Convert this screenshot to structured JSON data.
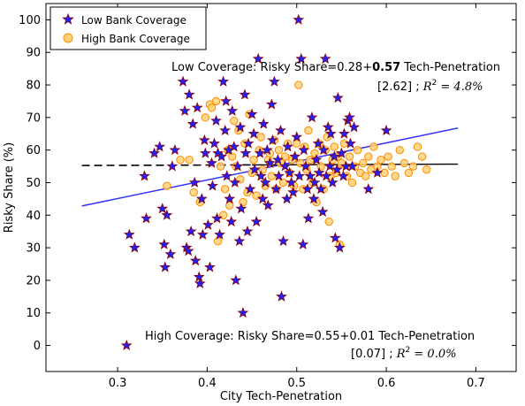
{
  "chart_data": {
    "type": "scatter",
    "xlabel": "City Tech-Penetration",
    "ylabel": "Risky Share (%)",
    "xlim": [
      0.22,
      0.745
    ],
    "ylim": [
      -8,
      105
    ],
    "xticks": [
      0.3,
      0.4,
      0.5,
      0.6,
      0.7
    ],
    "xtick_labels": [
      "0.3",
      "0.4",
      "0.5",
      "0.6",
      "0.7"
    ],
    "yticks": [
      0,
      10,
      20,
      30,
      40,
      50,
      60,
      70,
      80,
      90,
      100
    ],
    "ytick_labels": [
      "0",
      "10",
      "20",
      "30",
      "40",
      "50",
      "60",
      "70",
      "80",
      "90",
      "100"
    ],
    "legend": {
      "placement": "top-left"
    },
    "series": [
      {
        "name": "Low Bank Coverage",
        "marker": "star",
        "color": "#2020ff",
        "edge_color": "#8b0000",
        "points": [
          [
            0.31,
            0
          ],
          [
            0.313,
            34
          ],
          [
            0.319,
            30
          ],
          [
            0.33,
            52
          ],
          [
            0.332,
            39
          ],
          [
            0.341,
            59
          ],
          [
            0.347,
            61
          ],
          [
            0.35,
            42
          ],
          [
            0.352,
            31
          ],
          [
            0.353,
            24
          ],
          [
            0.355,
            40
          ],
          [
            0.359,
            28
          ],
          [
            0.361,
            55
          ],
          [
            0.364,
            60
          ],
          [
            0.37,
            92
          ],
          [
            0.373,
            81
          ],
          [
            0.375,
            72
          ],
          [
            0.377,
            30
          ],
          [
            0.379,
            29
          ],
          [
            0.38,
            77
          ],
          [
            0.382,
            35
          ],
          [
            0.384,
            68
          ],
          [
            0.386,
            50
          ],
          [
            0.387,
            26
          ],
          [
            0.389,
            73
          ],
          [
            0.391,
            21
          ],
          [
            0.392,
            19
          ],
          [
            0.394,
            45
          ],
          [
            0.395,
            34
          ],
          [
            0.397,
            63
          ],
          [
            0.398,
            59
          ],
          [
            0.401,
            37
          ],
          [
            0.403,
            24
          ],
          [
            0.405,
            56
          ],
          [
            0.406,
            49
          ],
          [
            0.408,
            62
          ],
          [
            0.41,
            69
          ],
          [
            0.411,
            39
          ],
          [
            0.412,
            59
          ],
          [
            0.414,
            34
          ],
          [
            0.416,
            58
          ],
          [
            0.418,
            81
          ],
          [
            0.42,
            66
          ],
          [
            0.421,
            75
          ],
          [
            0.422,
            52
          ],
          [
            0.424,
            60
          ],
          [
            0.425,
            45
          ],
          [
            0.427,
            38
          ],
          [
            0.428,
            72
          ],
          [
            0.43,
            61
          ],
          [
            0.431,
            50
          ],
          [
            0.432,
            20
          ],
          [
            0.434,
            55
          ],
          [
            0.436,
            32
          ],
          [
            0.437,
            67
          ],
          [
            0.438,
            42
          ],
          [
            0.44,
            10
          ],
          [
            0.442,
            77
          ],
          [
            0.443,
            59
          ],
          [
            0.445,
            35
          ],
          [
            0.446,
            62
          ],
          [
            0.448,
            48
          ],
          [
            0.45,
            71
          ],
          [
            0.452,
            65
          ],
          [
            0.453,
            54
          ],
          [
            0.455,
            38
          ],
          [
            0.457,
            88
          ],
          [
            0.459,
            59
          ],
          [
            0.46,
            52
          ],
          [
            0.462,
            45
          ],
          [
            0.463,
            68
          ],
          [
            0.465,
            50
          ],
          [
            0.467,
            60
          ],
          [
            0.468,
            43
          ],
          [
            0.47,
            56
          ],
          [
            0.472,
            74
          ],
          [
            0.473,
            63
          ],
          [
            0.475,
            81
          ],
          [
            0.477,
            48
          ],
          [
            0.479,
            57
          ],
          [
            0.48,
            52
          ],
          [
            0.482,
            66
          ],
          [
            0.483,
            15
          ],
          [
            0.485,
            32
          ],
          [
            0.487,
            55
          ],
          [
            0.489,
            45
          ],
          [
            0.49,
            61
          ],
          [
            0.492,
            53
          ],
          [
            0.494,
            50
          ],
          [
            0.496,
            47
          ],
          [
            0.498,
            58
          ],
          [
            0.5,
            64
          ],
          [
            0.502,
            100
          ],
          [
            0.503,
            52
          ],
          [
            0.505,
            88
          ],
          [
            0.507,
            31
          ],
          [
            0.508,
            60
          ],
          [
            0.51,
            55
          ],
          [
            0.512,
            48
          ],
          [
            0.513,
            39
          ],
          [
            0.515,
            52
          ],
          [
            0.517,
            70
          ],
          [
            0.519,
            45
          ],
          [
            0.52,
            50
          ],
          [
            0.522,
            57
          ],
          [
            0.524,
            62
          ],
          [
            0.525,
            53
          ],
          [
            0.527,
            48
          ],
          [
            0.529,
            41
          ],
          [
            0.53,
            60
          ],
          [
            0.532,
            88
          ],
          [
            0.533,
            52
          ],
          [
            0.535,
            67
          ],
          [
            0.537,
            55
          ],
          [
            0.538,
            65
          ],
          [
            0.54,
            50
          ],
          [
            0.542,
            58
          ],
          [
            0.543,
            33
          ],
          [
            0.545,
            54
          ],
          [
            0.546,
            76
          ],
          [
            0.548,
            30
          ],
          [
            0.55,
            59
          ],
          [
            0.552,
            52
          ],
          [
            0.553,
            65
          ],
          [
            0.555,
            55
          ],
          [
            0.557,
            69
          ],
          [
            0.559,
            70
          ],
          [
            0.56,
            62
          ],
          [
            0.562,
            55
          ],
          [
            0.564,
            67
          ],
          [
            0.58,
            48
          ],
          [
            0.59,
            53
          ],
          [
            0.6,
            66
          ]
        ]
      },
      {
        "name": "High Bank Coverage",
        "marker": "circle",
        "color": "#ffd27a",
        "edge_color": "#ff8c00",
        "points": [
          [
            0.355,
            49
          ],
          [
            0.37,
            57
          ],
          [
            0.38,
            57
          ],
          [
            0.385,
            47
          ],
          [
            0.392,
            44
          ],
          [
            0.398,
            70
          ],
          [
            0.403,
            74
          ],
          [
            0.405,
            73
          ],
          [
            0.41,
            75
          ],
          [
            0.412,
            32
          ],
          [
            0.415,
            55
          ],
          [
            0.418,
            40
          ],
          [
            0.42,
            48
          ],
          [
            0.423,
            60
          ],
          [
            0.425,
            43
          ],
          [
            0.428,
            58
          ],
          [
            0.43,
            69
          ],
          [
            0.432,
            55
          ],
          [
            0.435,
            66
          ],
          [
            0.437,
            51
          ],
          [
            0.44,
            44
          ],
          [
            0.442,
            62
          ],
          [
            0.445,
            47
          ],
          [
            0.447,
            71
          ],
          [
            0.45,
            53
          ],
          [
            0.452,
            57
          ],
          [
            0.455,
            46
          ],
          [
            0.458,
            60
          ],
          [
            0.46,
            64
          ],
          [
            0.462,
            54
          ],
          [
            0.465,
            49
          ],
          [
            0.468,
            57
          ],
          [
            0.47,
            59
          ],
          [
            0.472,
            52
          ],
          [
            0.475,
            63
          ],
          [
            0.477,
            48
          ],
          [
            0.48,
            60
          ],
          [
            0.482,
            56
          ],
          [
            0.485,
            50
          ],
          [
            0.487,
            58
          ],
          [
            0.49,
            62
          ],
          [
            0.492,
            53
          ],
          [
            0.495,
            57
          ],
          [
            0.497,
            49
          ],
          [
            0.5,
            62
          ],
          [
            0.502,
            80
          ],
          [
            0.504,
            56
          ],
          [
            0.507,
            48
          ],
          [
            0.509,
            61
          ],
          [
            0.511,
            54
          ],
          [
            0.513,
            66
          ],
          [
            0.515,
            57
          ],
          [
            0.518,
            50
          ],
          [
            0.52,
            59
          ],
          [
            0.522,
            44
          ],
          [
            0.525,
            62
          ],
          [
            0.527,
            55
          ],
          [
            0.53,
            48
          ],
          [
            0.532,
            60
          ],
          [
            0.534,
            64
          ],
          [
            0.536,
            38
          ],
          [
            0.538,
            52
          ],
          [
            0.54,
            57
          ],
          [
            0.542,
            61
          ],
          [
            0.544,
            53
          ],
          [
            0.546,
            58
          ],
          [
            0.548,
            31
          ],
          [
            0.55,
            56
          ],
          [
            0.553,
            62
          ],
          [
            0.556,
            52
          ],
          [
            0.559,
            58
          ],
          [
            0.562,
            50
          ],
          [
            0.565,
            55
          ],
          [
            0.568,
            60
          ],
          [
            0.571,
            53
          ],
          [
            0.574,
            56
          ],
          [
            0.577,
            52
          ],
          [
            0.58,
            58
          ],
          [
            0.583,
            54
          ],
          [
            0.586,
            61
          ],
          [
            0.59,
            55
          ],
          [
            0.594,
            57
          ],
          [
            0.598,
            53
          ],
          [
            0.602,
            58
          ],
          [
            0.606,
            55
          ],
          [
            0.61,
            52
          ],
          [
            0.615,
            60
          ],
          [
            0.62,
            56
          ],
          [
            0.625,
            53
          ],
          [
            0.63,
            55
          ],
          [
            0.635,
            61
          ],
          [
            0.64,
            58
          ],
          [
            0.645,
            54
          ]
        ]
      }
    ],
    "fit_lines": [
      {
        "label": "Low Coverage",
        "intercept": 0.28,
        "slope": 0.57,
        "x_range": [
          0.26,
          0.68
        ],
        "color": "#3333ff",
        "style": "solid"
      },
      {
        "label": "High Coverage",
        "intercept": 0.55,
        "slope": 0.01,
        "x_range": [
          0.26,
          0.68
        ],
        "color": "#000000",
        "style": "dashed-solid"
      }
    ],
    "annotations": {
      "low": {
        "line1_prefix": "Low Coverage: Risky Share=0.28+",
        "line1_bold": "0.57",
        "line1_suffix": " Tech-Penetration",
        "line2_prefix": "[2.62] ;  ",
        "line2_r2": "R",
        "line2_r2_sup": "2",
        "line2_r2_val": " = 4.8%"
      },
      "high": {
        "line1": "High Coverage: Risky Share=0.55+0.01 Tech-Penetration",
        "line2_prefix": "[0.07] ; ",
        "line2_r2": "R",
        "line2_r2_sup": "2",
        "line2_r2_val": " = 0.0%"
      }
    }
  }
}
